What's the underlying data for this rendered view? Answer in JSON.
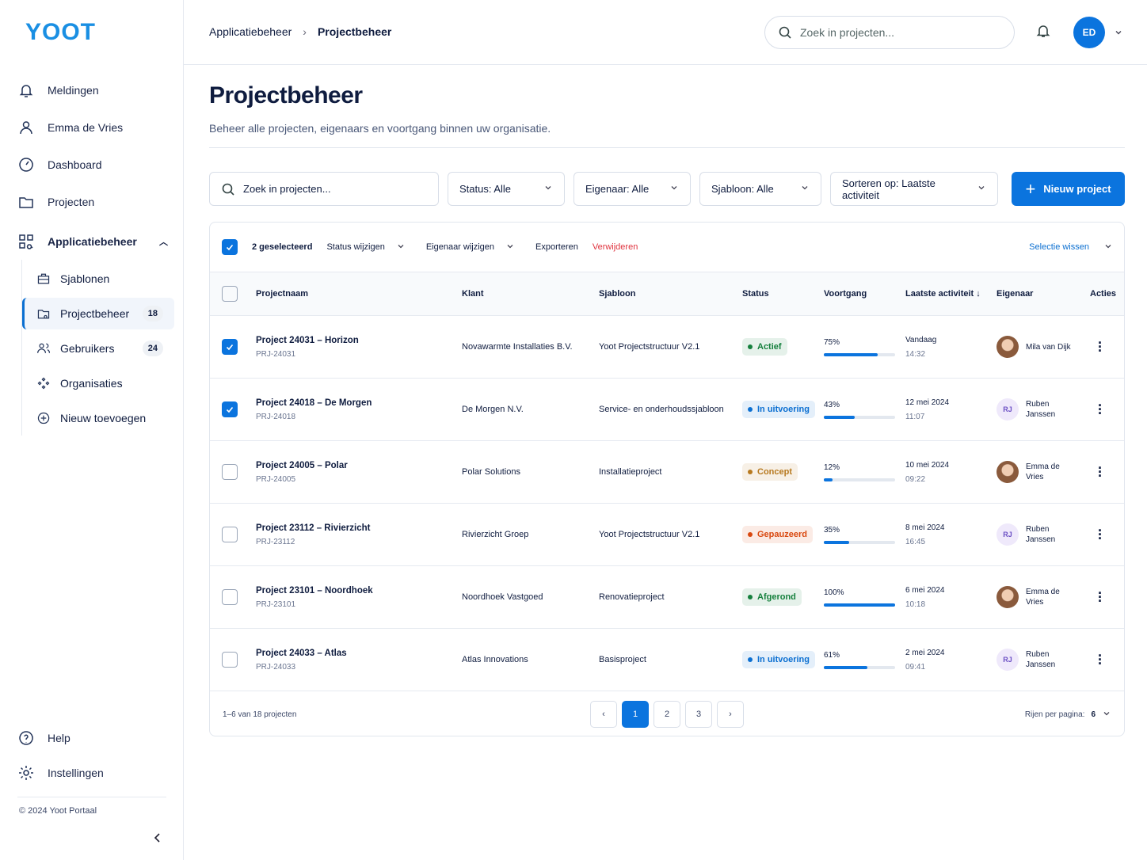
{
  "sidebar": {
    "logo": "YOOT",
    "nav": [
      {
        "label": "Meldingen"
      },
      {
        "label": "Emma de Vries"
      },
      {
        "label": "Dashboard"
      },
      {
        "label": "Projecten"
      }
    ],
    "section": {
      "label": "Applicatiebeheer",
      "items": [
        {
          "label": "Sjablonen"
        },
        {
          "label": "Projectbeheer",
          "badge": 18,
          "active": true
        },
        {
          "label": "Gebruikers",
          "badge": 24
        },
        {
          "label": "Organisaties"
        },
        {
          "label": "Nieuw toevoegen"
        }
      ]
    },
    "footer_nav": [
      {
        "label": "Help"
      },
      {
        "label": "Instellingen"
      }
    ],
    "copyright": "© 2024 Yoot Portaal"
  },
  "header": {
    "breadcrumb": [
      "Applicatiebeheer",
      "Projectbeheer"
    ],
    "search_placeholder": "Zoek in projecten...",
    "avatar": "ED"
  },
  "page": {
    "title": "Projectbeheer",
    "subtitle": "Beheer alle projecten, eigenaars en voortgang binnen uw organisatie."
  },
  "toolbar": {
    "search_placeholder": "Zoek in projecten...",
    "filters": [
      "Status: Alle",
      "Eigenaar: Alle",
      "Sjabloon: Alle",
      "Sorteren op: Laatste activiteit"
    ],
    "new_button": "Nieuw project"
  },
  "bulk": {
    "selected": "2 geselecteerd",
    "actions": [
      "Status wijzigen",
      "Eigenaar wijzigen",
      "Exporteren",
      "Verwijderen"
    ],
    "clear": "Selectie wissen"
  },
  "table": {
    "columns": [
      "Projectnaam",
      "Klant",
      "Sjabloon",
      "Status",
      "Voortgang",
      "Laatste activiteit ↓",
      "Eigenaar",
      "Acties"
    ],
    "rows": [
      {
        "checked": true,
        "name": "Project 24031 – Horizon",
        "code": "PRJ-24031",
        "client": "Novawarmte Installaties B.V.",
        "template": "Yoot Projectstructuur V2.1",
        "status": "Actief",
        "status_color": "#15803d",
        "progress": {
          "value": 75,
          "label": "75%"
        },
        "date": "Vandaag",
        "time": "14:32",
        "owner": "Mila van Dijk"
      },
      {
        "checked": true,
        "name": "Project 24018 – De Morgen",
        "code": "PRJ-24018",
        "client": "De Morgen N.V.",
        "template": "Service- en onderhoudssjabloon",
        "status": "In uitvoering",
        "status_color": "#0b6fd1",
        "progress": {
          "value": 43,
          "label": "43%"
        },
        "date": "12 mei 2024",
        "time": "11:07",
        "owner": "Ruben Janssen",
        "owner_initials": "RJ"
      },
      {
        "checked": false,
        "name": "Project 24005 – Polar",
        "code": "PRJ-24005",
        "client": "Polar Solutions",
        "template": "Installatieproject",
        "status": "Concept",
        "status_color": "#b7791f",
        "progress": {
          "value": 12,
          "label": "12%"
        },
        "date": "10 mei 2024",
        "time": "09:22",
        "owner": "Emma de Vries"
      },
      {
        "checked": false,
        "name": "Project 23112 – Rivierzicht",
        "code": "PRJ-23112",
        "client": "Rivierzicht Groep",
        "template": "Yoot Projectstructuur V2.1",
        "status": "Gepauzeerd",
        "status_color": "#d9480f",
        "progress": {
          "value": 35,
          "label": "35%"
        },
        "date": "8 mei 2024",
        "time": "16:45",
        "owner": "Ruben Janssen",
        "owner_initials": "RJ"
      },
      {
        "checked": false,
        "name": "Project 23101 – Noordhoek",
        "code": "PRJ-23101",
        "client": "Noordhoek Vastgoed",
        "template": "Renovatieproject",
        "status": "Afgerond",
        "status_color": "#15803d",
        "progress": {
          "value": 100,
          "label": "100%"
        },
        "date": "6 mei 2024",
        "time": "10:18",
        "owner": "Emma de Vries"
      },
      {
        "checked": false,
        "name": "Project 24033 – Atlas",
        "code": "PRJ-24033",
        "client": "Atlas Innovations",
        "template": "Basisproject",
        "status": "In uitvoering",
        "status_color": "#0b6fd1",
        "progress": {
          "value": 61,
          "label": "61%"
        },
        "date": "2 mei 2024",
        "time": "09:41",
        "owner": "Ruben Janssen",
        "owner_initials": "RJ"
      }
    ]
  },
  "pagination": {
    "summary": "1–6 van 18 projecten",
    "pages": [
      1,
      2,
      3
    ],
    "current": 1,
    "rows_per_page_label": "Rijen per pagina:",
    "rows_per_page": 6
  }
}
